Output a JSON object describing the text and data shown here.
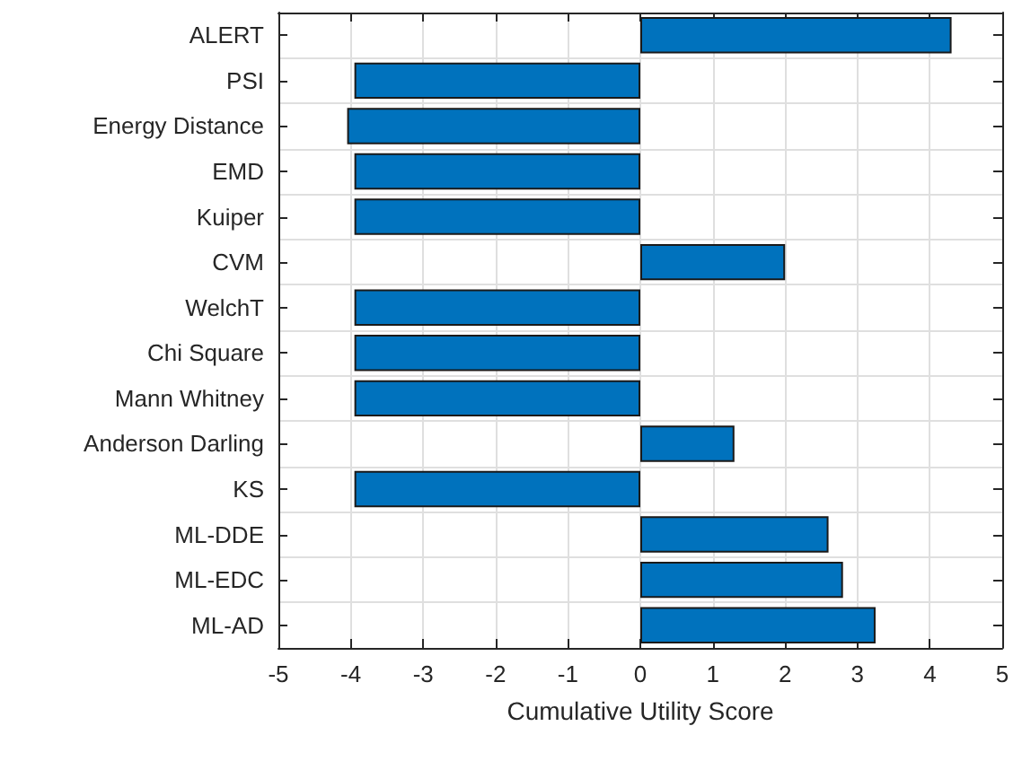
{
  "chart_data": {
    "type": "bar",
    "orientation": "horizontal",
    "xlabel": "Cumulative Utility Score",
    "categories": [
      "ALERT",
      "PSI",
      "Energy Distance",
      "EMD",
      "Kuiper",
      "CVM",
      "WelchT",
      "Chi Square",
      "Mann Whitney",
      "Anderson Darling",
      "KS",
      "ML-DDE",
      "ML-EDC",
      "ML-AD"
    ],
    "values": [
      4.3,
      -3.95,
      -4.05,
      -3.95,
      -3.95,
      2.0,
      -3.95,
      -3.95,
      -3.95,
      1.3,
      -3.95,
      2.6,
      2.8,
      3.25
    ],
    "color": "#0072bd",
    "xlim": [
      -5,
      5
    ],
    "xticks": [
      -5,
      -4,
      -3,
      -2,
      -1,
      0,
      1,
      2,
      3,
      4,
      5
    ],
    "grid": true
  }
}
